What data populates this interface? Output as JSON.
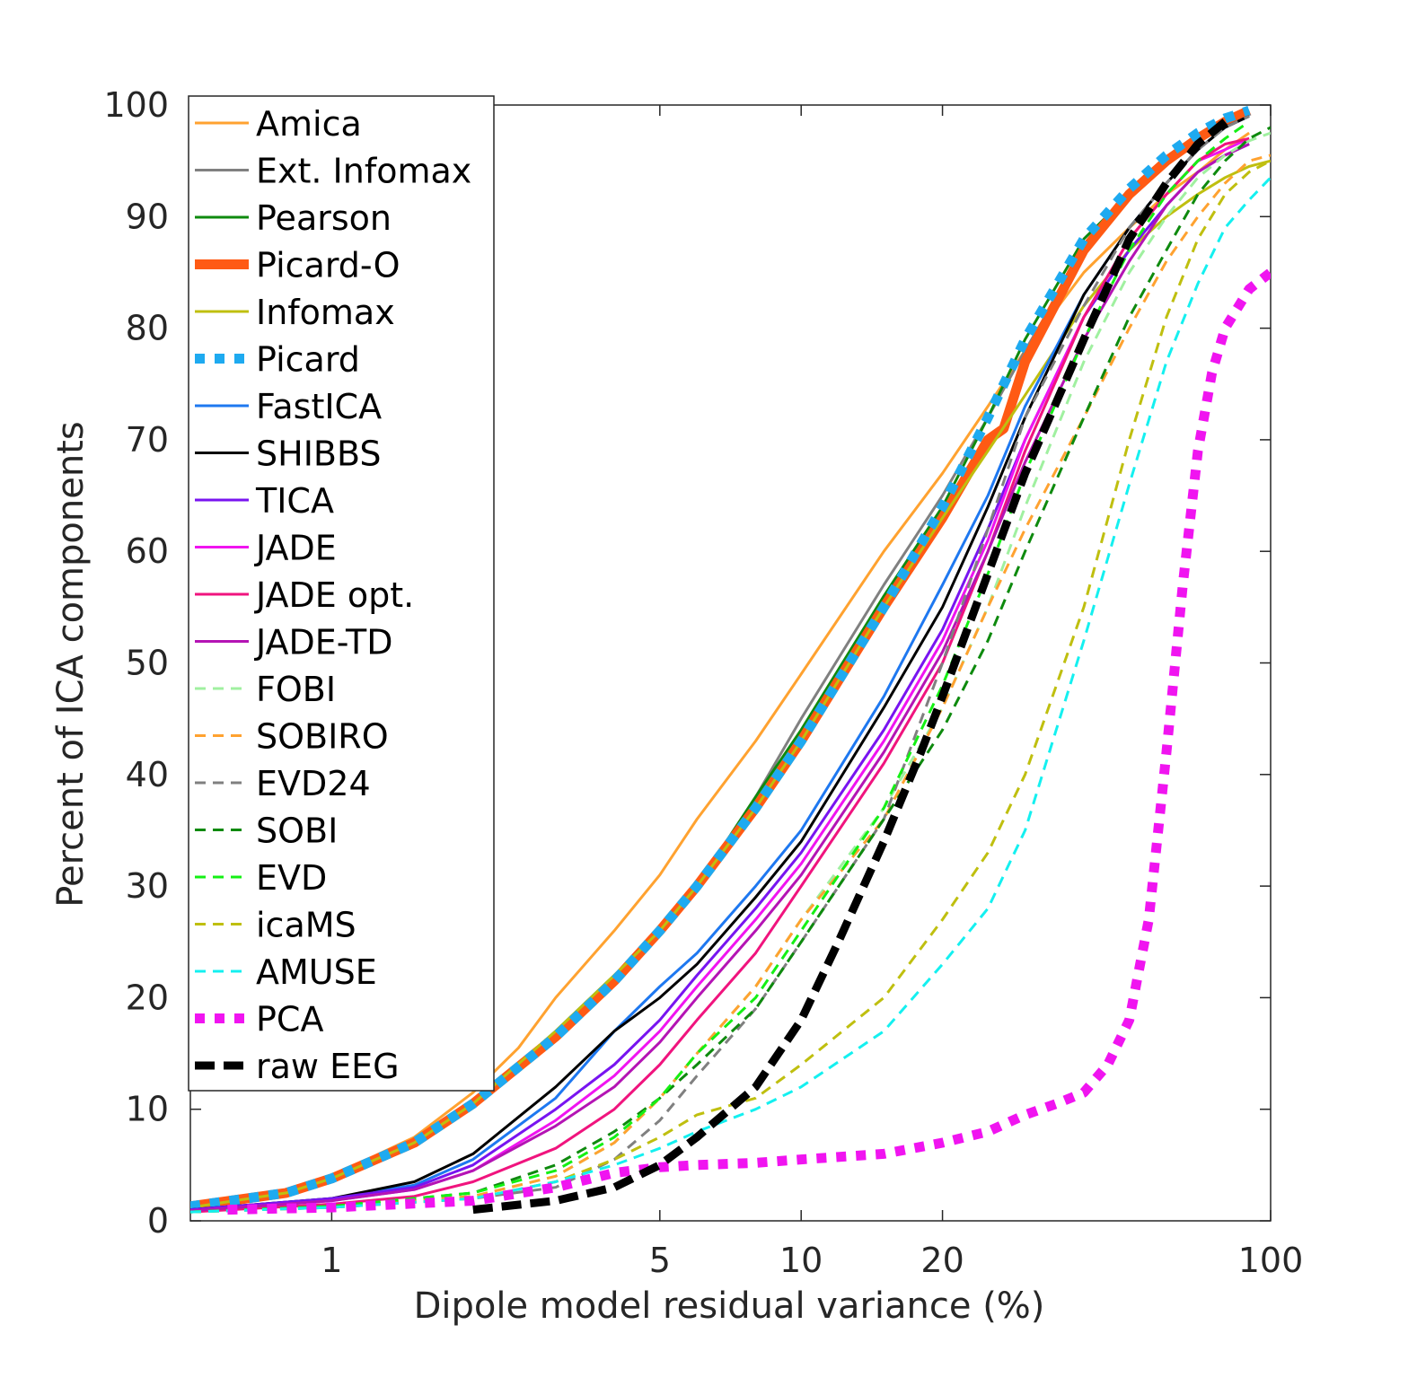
{
  "chart_data": {
    "type": "line",
    "title": "",
    "xlabel": "Dipole model residual variance (%)",
    "ylabel": "Percent of ICA components",
    "xscale": "log",
    "xlim": [
      0.5,
      100
    ],
    "ylim": [
      0,
      100
    ],
    "grid": false,
    "legend_position": "top-left",
    "x_ticks": [
      1,
      5,
      10,
      20,
      100
    ],
    "x_tick_labels": [
      "1",
      "5",
      "10",
      "20",
      "100"
    ],
    "y_ticks": [
      0,
      10,
      20,
      30,
      40,
      50,
      60,
      70,
      80,
      90,
      100
    ],
    "y_tick_labels": [
      "0",
      "10",
      "20",
      "30",
      "40",
      "50",
      "60",
      "70",
      "80",
      "90",
      "100"
    ],
    "series": [
      {
        "name": "Amica",
        "color": "#FFA230",
        "style": "solid",
        "width": 3,
        "x": [
          0.5,
          0.8,
          1,
          1.5,
          2,
          2.5,
          3,
          4,
          5,
          6,
          8,
          10,
          15,
          20,
          25,
          30,
          40,
          50,
          60,
          70,
          80,
          90
        ],
        "y": [
          1.5,
          2.5,
          4,
          7.5,
          11.5,
          15.5,
          20,
          26,
          31,
          36,
          43,
          49,
          60,
          67,
          73,
          78,
          85,
          89,
          92,
          94,
          96,
          97.5
        ]
      },
      {
        "name": "Ext. Infomax",
        "color": "#808080",
        "style": "solid",
        "width": 3,
        "x": [
          0.5,
          0.8,
          1,
          1.5,
          2,
          3,
          4,
          5,
          6,
          8,
          10,
          15,
          20,
          25,
          30,
          40,
          50,
          60,
          70,
          80,
          90
        ],
        "y": [
          1.2,
          2.5,
          3.8,
          7,
          10.5,
          17,
          22,
          26,
          30,
          38,
          45,
          57,
          65,
          72,
          78,
          87,
          92,
          95,
          97,
          98.5,
          99.5
        ]
      },
      {
        "name": "Pearson",
        "color": "#0E8A0E",
        "style": "solid",
        "width": 3,
        "x": [
          0.5,
          0.8,
          1,
          1.5,
          2,
          3,
          4,
          5,
          6,
          8,
          10,
          15,
          20,
          25,
          30,
          40,
          50,
          60,
          70,
          80,
          90
        ],
        "y": [
          1.0,
          2.3,
          3.6,
          7,
          10.5,
          17,
          22,
          26,
          30,
          38,
          44,
          56,
          64,
          72,
          79,
          88,
          92,
          95,
          97,
          98.5,
          99.5
        ]
      },
      {
        "name": "Picard-O",
        "color": "#FF5A14",
        "style": "solid",
        "width": 11,
        "x": [
          0.5,
          0.8,
          1,
          1.5,
          2,
          3,
          4,
          5,
          6,
          8,
          10,
          15,
          20,
          25,
          27,
          30,
          40,
          50,
          60,
          70,
          80,
          90
        ],
        "y": [
          1.3,
          2.5,
          3.8,
          7,
          10.5,
          16.5,
          21.5,
          26,
          30,
          37,
          43,
          55,
          63,
          70,
          71,
          77,
          87,
          92,
          95,
          97,
          98.5,
          99.5
        ]
      },
      {
        "name": "Infomax",
        "color": "#BFBF0F",
        "style": "solid",
        "width": 3,
        "x": [
          0.5,
          0.8,
          1,
          1.5,
          2,
          3,
          4,
          5,
          6,
          8,
          10,
          15,
          20,
          25,
          30,
          40,
          50,
          60,
          70,
          80,
          90,
          100
        ],
        "y": [
          1.2,
          2.5,
          3.8,
          7,
          10.5,
          17,
          22,
          26,
          30,
          37,
          43,
          55,
          63,
          69,
          74,
          82,
          87,
          90,
          92,
          93.5,
          94.5,
          95
        ]
      },
      {
        "name": "Picard",
        "color": "#1EAAF0",
        "style": "dotted",
        "width": 11,
        "x": [
          0.5,
          0.8,
          1,
          1.5,
          2,
          3,
          4,
          5,
          6,
          8,
          10,
          15,
          20,
          25,
          30,
          40,
          50,
          60,
          70,
          80,
          90
        ],
        "y": [
          1.3,
          2.5,
          3.8,
          7,
          10.5,
          16.5,
          21.5,
          26,
          30,
          37,
          43,
          55,
          64,
          72,
          79,
          88,
          92.5,
          95.5,
          97.5,
          98.8,
          99.5
        ]
      },
      {
        "name": "FastICA",
        "color": "#1E78F0",
        "style": "solid",
        "width": 3,
        "x": [
          0.5,
          1,
          1.5,
          2,
          3,
          4,
          5,
          6,
          8,
          10,
          15,
          20,
          25,
          30,
          40,
          50,
          60,
          70,
          80,
          90
        ],
        "y": [
          1.0,
          2.0,
          3.2,
          5.5,
          11,
          17,
          21,
          24,
          30,
          35,
          47,
          57,
          65,
          73,
          83,
          89,
          93,
          96,
          98,
          99
        ]
      },
      {
        "name": "SHIBBS",
        "color": "#000000",
        "style": "solid",
        "width": 3,
        "x": [
          0.5,
          1,
          1.5,
          2,
          3,
          4,
          5,
          6,
          8,
          10,
          15,
          20,
          25,
          30,
          40,
          50,
          60,
          70,
          80,
          90
        ],
        "y": [
          1.0,
          2.0,
          3.5,
          6,
          12,
          17,
          20,
          23,
          29,
          34,
          46,
          55,
          64,
          72,
          83,
          89,
          93,
          96,
          98,
          99
        ]
      },
      {
        "name": "TICA",
        "color": "#7814F0",
        "style": "solid",
        "width": 3,
        "x": [
          0.5,
          1,
          1.5,
          2,
          3,
          4,
          5,
          6,
          8,
          10,
          15,
          20,
          25,
          30,
          40,
          50,
          60,
          70,
          80,
          90
        ],
        "y": [
          1.0,
          2.0,
          3.0,
          5,
          10,
          14,
          18,
          22,
          28,
          33,
          44,
          53,
          62,
          70,
          81,
          87,
          91,
          94,
          95.5,
          96.5
        ]
      },
      {
        "name": "JADE",
        "color": "#F014F0",
        "style": "solid",
        "width": 3,
        "x": [
          0.5,
          1,
          1.5,
          2,
          3,
          4,
          5,
          6,
          8,
          10,
          15,
          20,
          25,
          30,
          40,
          50,
          60,
          70,
          80,
          90
        ],
        "y": [
          0.9,
          1.8,
          2.8,
          4.5,
          9,
          13,
          17,
          21,
          27,
          32,
          43,
          52,
          61,
          70,
          81,
          88,
          92,
          95,
          96,
          97
        ]
      },
      {
        "name": "JADE opt.",
        "color": "#F0147E",
        "style": "solid",
        "width": 3,
        "x": [
          0.5,
          1,
          1.5,
          2,
          3,
          4,
          5,
          6,
          8,
          10,
          15,
          20,
          25,
          30,
          40,
          50,
          60,
          70,
          80,
          90
        ],
        "y": [
          0.8,
          1.5,
          2.2,
          3.5,
          6.5,
          10,
          14,
          18,
          24,
          30,
          41,
          50,
          60,
          69,
          81,
          88,
          92,
          95,
          96.5,
          97
        ]
      },
      {
        "name": "JADE-TD",
        "color": "#B414B4",
        "style": "solid",
        "width": 3,
        "x": [
          0.5,
          1,
          1.5,
          2,
          3,
          4,
          5,
          6,
          8,
          10,
          15,
          20,
          25,
          30,
          40,
          50,
          60,
          70,
          80,
          90
        ],
        "y": [
          0.9,
          1.8,
          2.8,
          4.5,
          8.5,
          12,
          16,
          20,
          26,
          31,
          42,
          51,
          60,
          68,
          79,
          86,
          91,
          94,
          95.5,
          96.5
        ]
      },
      {
        "name": "FOBI",
        "color": "#A0F0A0",
        "style": "dashed",
        "width": 3,
        "x": [
          0.5,
          1,
          2,
          3,
          4,
          5,
          6,
          8,
          10,
          15,
          20,
          25,
          30,
          40,
          50,
          60,
          70,
          80,
          90,
          100
        ],
        "y": [
          0.8,
          1.3,
          2.2,
          4,
          7,
          11,
          15,
          21,
          27,
          37,
          46,
          55,
          64,
          77,
          85,
          90,
          93.5,
          95.5,
          96.8,
          97.5
        ]
      },
      {
        "name": "SOBIRO",
        "color": "#FFA230",
        "style": "dashed",
        "width": 3,
        "x": [
          0.5,
          1,
          2,
          3,
          4,
          5,
          6,
          8,
          10,
          15,
          20,
          25,
          30,
          40,
          50,
          60,
          70,
          80,
          90,
          100
        ],
        "y": [
          0.8,
          1.3,
          2.2,
          4,
          7,
          11,
          15,
          21,
          27,
          36,
          46,
          55,
          62,
          72,
          80,
          86,
          90,
          93,
          95,
          95.5
        ]
      },
      {
        "name": "EVD24",
        "color": "#808080",
        "style": "dashed",
        "width": 3,
        "x": [
          0.5,
          1,
          2,
          3,
          4,
          5,
          6,
          8,
          10,
          15,
          20,
          25,
          30,
          40,
          50,
          60,
          70,
          80,
          90
        ],
        "y": [
          0.8,
          1.2,
          2,
          3,
          5.5,
          9,
          13,
          19,
          25,
          36,
          50,
          62,
          72,
          82,
          89,
          93,
          96,
          98,
          99
        ]
      },
      {
        "name": "SOBI",
        "color": "#0E8A0E",
        "style": "dashed",
        "width": 3,
        "x": [
          0.5,
          1,
          2,
          3,
          4,
          5,
          6,
          8,
          10,
          15,
          20,
          25,
          30,
          40,
          50,
          60,
          70,
          80,
          90,
          100
        ],
        "y": [
          0.8,
          1.3,
          2.5,
          5,
          8,
          11,
          14,
          19,
          25,
          36,
          44,
          52,
          60,
          72,
          81,
          87,
          92,
          95,
          97,
          98
        ]
      },
      {
        "name": "EVD",
        "color": "#14F014",
        "style": "dashed",
        "width": 3,
        "x": [
          0.5,
          1,
          2,
          3,
          4,
          5,
          6,
          8,
          10,
          15,
          20,
          25,
          30,
          40,
          50,
          60,
          70,
          80,
          90
        ],
        "y": [
          0.8,
          1.3,
          2.5,
          4.5,
          7.5,
          11,
          15,
          20,
          26,
          37,
          48,
          58,
          67,
          79,
          87,
          92,
          95,
          97,
          98.5
        ]
      },
      {
        "name": "icaMS",
        "color": "#BFBF0F",
        "style": "dashed",
        "width": 3,
        "x": [
          0.5,
          1,
          2,
          3,
          4,
          5,
          6,
          8,
          10,
          15,
          20,
          25,
          30,
          40,
          50,
          60,
          70,
          80,
          90,
          100
        ],
        "y": [
          0.8,
          1.2,
          2,
          3.5,
          5.5,
          7.5,
          9.5,
          11,
          14,
          20,
          27,
          33,
          40,
          55,
          70,
          81,
          88,
          92,
          94,
          95
        ]
      },
      {
        "name": "AMUSE",
        "color": "#14F0F0",
        "style": "dashed",
        "width": 3,
        "x": [
          0.5,
          1,
          2,
          3,
          4,
          5,
          6,
          8,
          10,
          15,
          20,
          25,
          30,
          40,
          50,
          60,
          70,
          80,
          90,
          100
        ],
        "y": [
          0.8,
          1.2,
          2,
          3.5,
          5,
          6.5,
          8,
          10,
          12,
          17,
          23,
          28,
          35,
          52,
          66,
          77,
          84,
          89,
          91.5,
          93.5
        ]
      },
      {
        "name": "PCA",
        "color": "#F014F0",
        "style": "dotted",
        "width": 11,
        "x": [
          0.6,
          1,
          2,
          3,
          4,
          5,
          6,
          8,
          10,
          15,
          20,
          25,
          30,
          35,
          40,
          45,
          50,
          55,
          60,
          65,
          70,
          75,
          80,
          90,
          100
        ],
        "y": [
          1.0,
          1.2,
          1.8,
          3,
          4.3,
          4.8,
          5,
          5.2,
          5.5,
          6,
          7,
          8,
          9.5,
          10.5,
          11.5,
          14,
          18,
          27,
          42,
          57,
          69,
          76,
          80,
          83.5,
          85
        ]
      },
      {
        "name": "raw EEG",
        "color": "#000000",
        "style": "dashed",
        "width": 9,
        "x": [
          2,
          3,
          4,
          5,
          6,
          8,
          10,
          12,
          15,
          18,
          20,
          25,
          30,
          40,
          50,
          60,
          70,
          80
        ],
        "y": [
          1,
          1.8,
          3,
          5,
          7.5,
          12,
          18,
          25,
          34,
          42,
          47,
          58,
          67,
          79,
          88,
          93,
          96.5,
          98.5
        ]
      }
    ]
  }
}
